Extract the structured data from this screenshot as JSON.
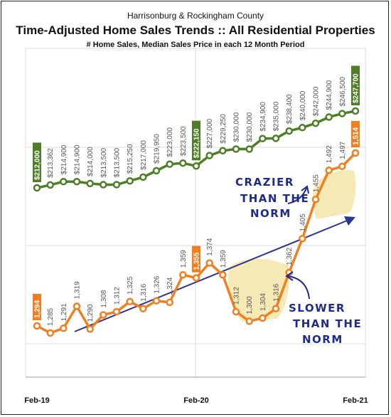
{
  "header": {
    "line1": "Harrisonburg & Rockingham County",
    "line2": "Time-Adjusted Home Sales Trends  ::  All Residential Properties",
    "line3": "# Home Sales, Median Sales Price in each 12 Month Period"
  },
  "annotations": {
    "crazier": [
      "CRAZIER",
      "THAN THE",
      "NORM"
    ],
    "slower": [
      "SLOWER",
      "THAN THE",
      "NORM"
    ]
  },
  "chart_data": {
    "type": "line",
    "x_tick_labels": [
      "Feb-19",
      "Feb-20",
      "Feb-21"
    ],
    "grid": true,
    "colors": {
      "price": "#4e7f27",
      "sales": "#f07f22",
      "trend": "#2b3590",
      "shade": "#f2e29c"
    },
    "series": [
      {
        "key": "price",
        "values": [
          212000,
          213362,
          214900,
          214900,
          214000,
          213500,
          213500,
          215250,
          217000,
          219950,
          223000,
          223500,
          222150,
          227000,
          229250,
          230000,
          230000,
          234900,
          235000,
          238400,
          240000,
          242000,
          244900,
          246500,
          247700
        ],
        "labels": [
          "$212,000",
          "$213,362",
          "$214,900",
          "$214,900",
          "$214,000",
          "$213,500",
          "$213,500",
          "$215,250",
          "$217,000",
          "$219,950",
          "$223,000",
          "$223,500",
          "$222,150",
          "$227,000",
          "$229,250",
          "$230,000",
          "$230,000",
          "$234,900",
          "$235,000",
          "$238,400",
          "$240,000",
          "$242,000",
          "$244,900",
          "$246,500",
          "$247,700"
        ]
      },
      {
        "key": "sales",
        "values": [
          1294,
          1285,
          1291,
          1319,
          1290,
          1308,
          1312,
          1325,
          1316,
          1326,
          1324,
          1359,
          1355,
          1374,
          1359,
          1312,
          1300,
          1304,
          1316,
          1362,
          1405,
          1455,
          1492,
          1497,
          1514
        ],
        "labels": [
          "1,294",
          "1,285",
          "1,291",
          "1,319",
          "1,290",
          "1,308",
          "1,312",
          "1,325",
          "1,316",
          "1,326",
          "1,324",
          "1,359",
          "1,355",
          "1,374",
          "1,359",
          "1,312",
          "1,300",
          "1,304",
          "1,316",
          "1,362",
          "1,405",
          "1,455",
          "1,492",
          "1,497",
          "1,514"
        ]
      }
    ]
  }
}
